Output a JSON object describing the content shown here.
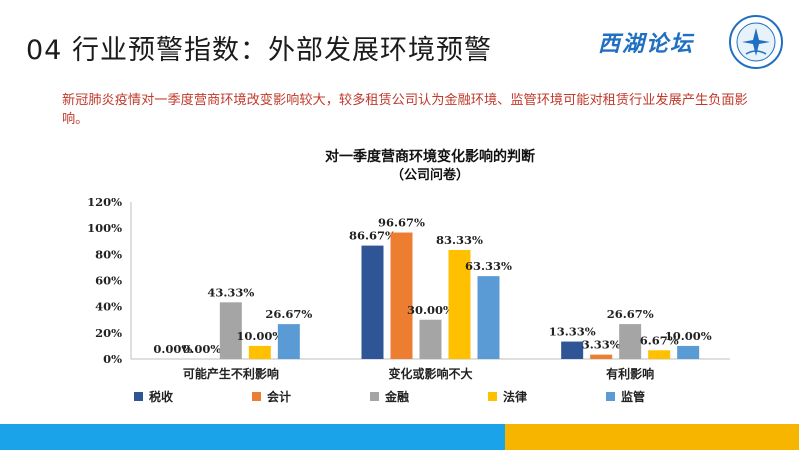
{
  "slide": {
    "title": "04 行业预警指数：外部发展环境预警",
    "brand": "西湖论坛",
    "subtitle": "新冠肺炎疫情对一季度营商环境改变影响较大，较多租赁公司认为金融环境、监管环境可能对租赁行业发展产生负面影响。"
  },
  "chart_data": {
    "type": "bar",
    "title": "对一季度营商环境变化影响的判断",
    "subtitle": "（公司问卷）",
    "categories": [
      "可能产生不利影响",
      "变化或影响不大",
      "有利影响"
    ],
    "series": [
      {
        "name": "税收",
        "color": "#2f5597",
        "values": [
          0.0,
          86.67,
          13.33
        ]
      },
      {
        "name": "会计",
        "color": "#ed7d31",
        "values": [
          0.0,
          96.67,
          3.33
        ]
      },
      {
        "name": "金融",
        "color": "#a5a5a5",
        "values": [
          43.33,
          30.0,
          26.67
        ]
      },
      {
        "name": "法律",
        "color": "#ffc000",
        "values": [
          10.0,
          83.33,
          6.67
        ]
      },
      {
        "name": "监管",
        "color": "#5b9bd5",
        "values": [
          26.67,
          63.33,
          10.0
        ]
      }
    ],
    "yticks": [
      "0%",
      "20%",
      "40%",
      "60%",
      "80%",
      "100%",
      "120%"
    ],
    "ylim": [
      0,
      120
    ],
    "legend_position": "bottom",
    "grid": false
  }
}
